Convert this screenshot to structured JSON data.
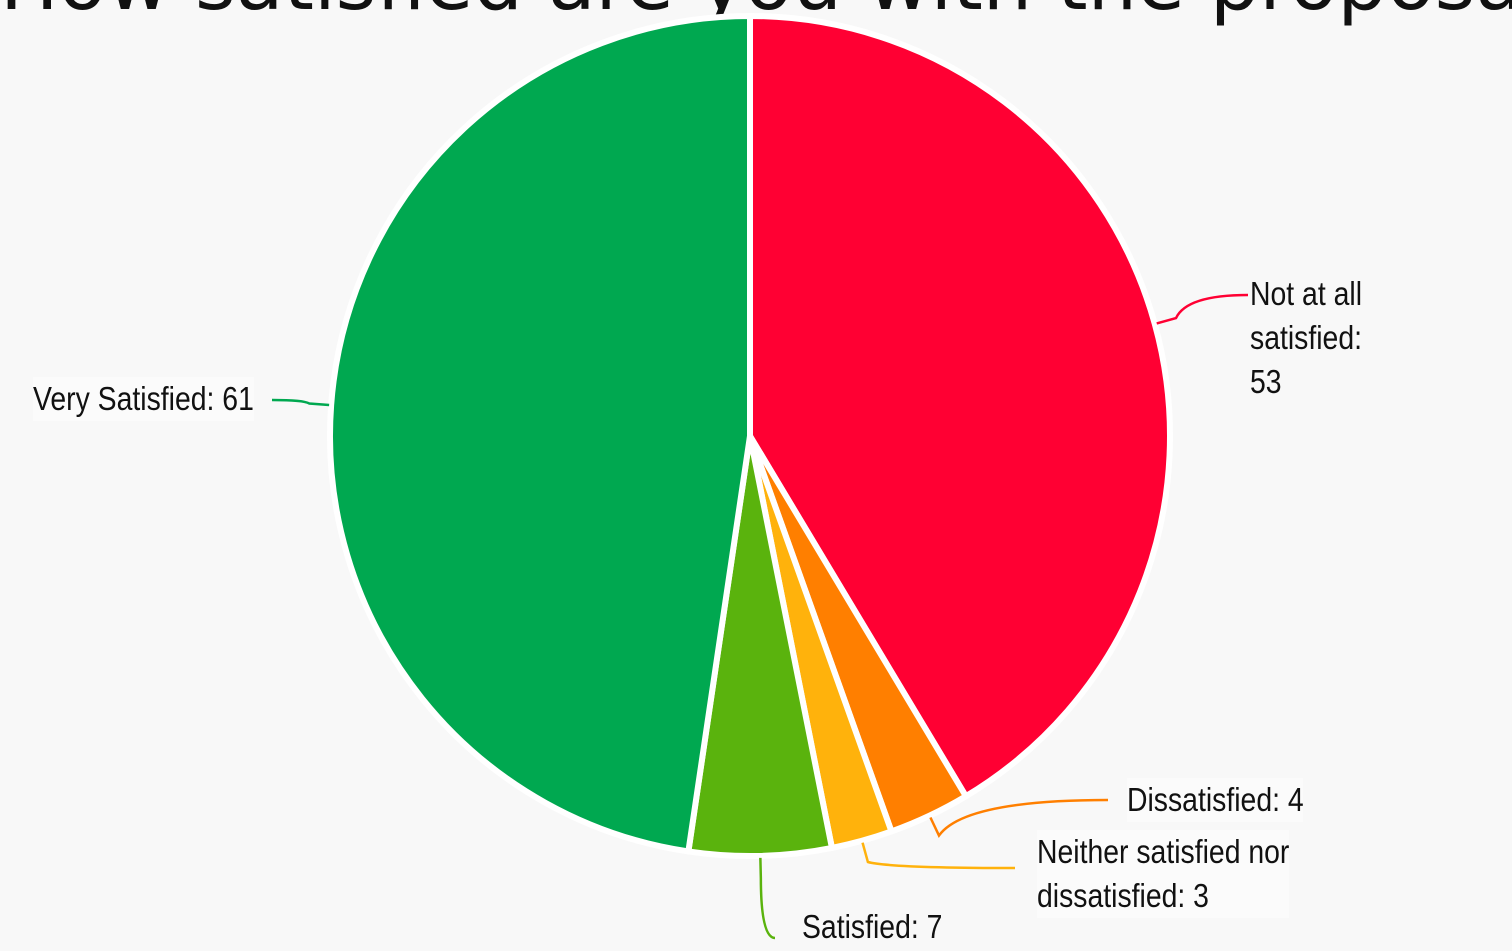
{
  "chart_data": {
    "type": "pie",
    "title": "How satisfied are you with the proposal?",
    "categories": [
      "Not at all satisfied",
      "Dissatisfied",
      "Neither satisfied nor dissatisfied",
      "Satisfied",
      "Very Satisfied"
    ],
    "values": [
      53,
      4,
      3,
      7,
      61
    ],
    "labels": [
      "Not at all satisfied:\n53",
      "Dissatisfied: 4",
      "Neither satisfied nor\ndissatisfied: 3",
      "Satisfied: 7",
      "Very Satisfied: 61"
    ],
    "colors": [
      "#ff0033",
      "#ff7f00",
      "#ffb20c",
      "#5ab30d",
      "#00a850"
    ],
    "legend": "none"
  }
}
